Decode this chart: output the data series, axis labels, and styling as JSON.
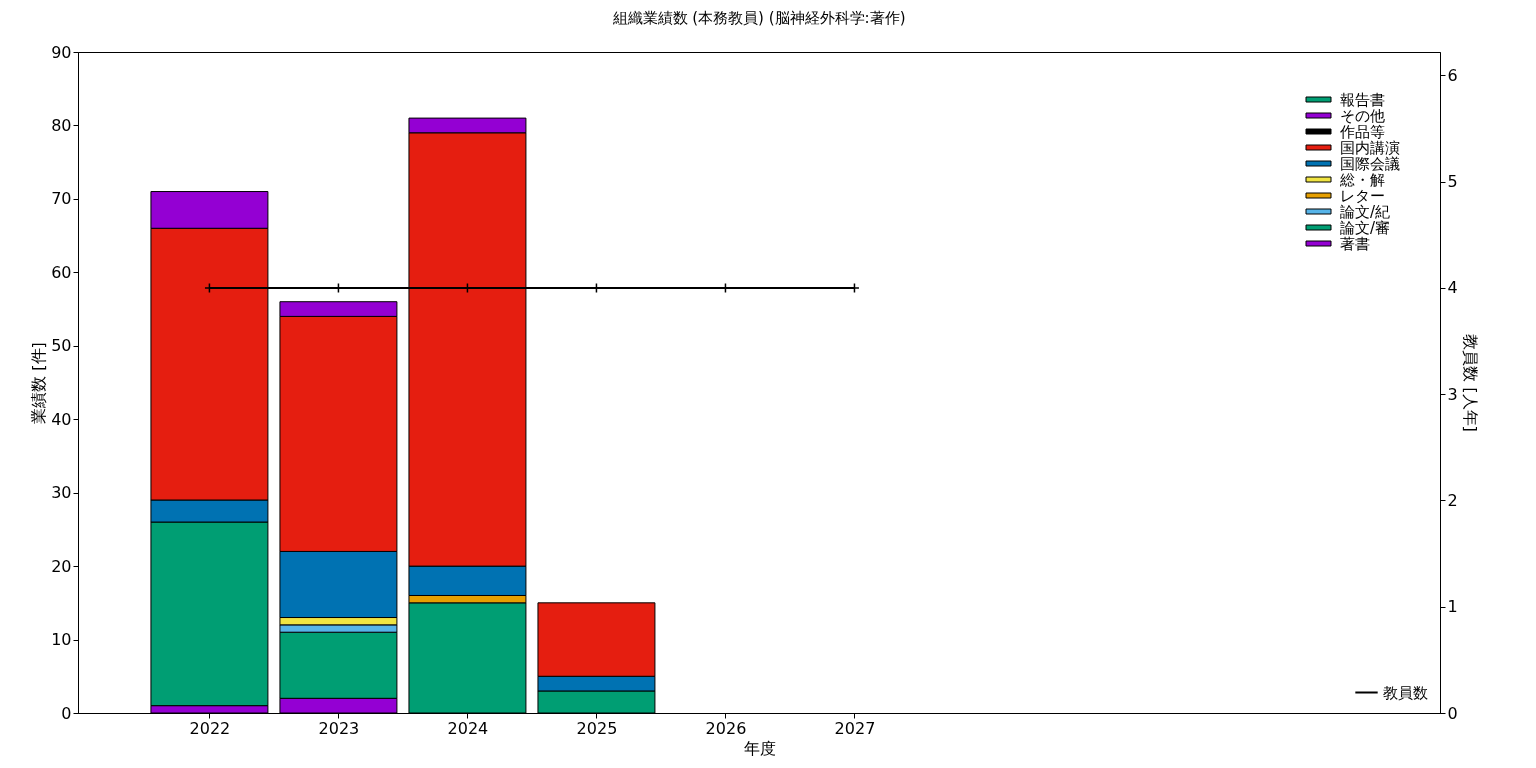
{
  "chart_data": {
    "type": "bar",
    "title": "組織業績数 (本務教員) (脳神経外科学:著作)",
    "xlabel": "年度",
    "ylabel": "業績数 [件]",
    "y2label": "教員数 [人年]",
    "stacked": true,
    "x": [
      2022,
      2023,
      2024,
      2025,
      2026,
      2027
    ],
    "xlim": [
      2021.02,
      2031.5
    ],
    "xticks": [
      2022,
      2023,
      2024,
      2025,
      2026,
      2027
    ],
    "ylim": [
      0,
      90
    ],
    "yticks": [
      0,
      10,
      20,
      30,
      40,
      50,
      60,
      70,
      80,
      90
    ],
    "y2lim": [
      0,
      6.22
    ],
    "y2ticks": [
      0,
      1,
      2,
      3,
      4,
      5,
      6
    ],
    "grid": false,
    "legend": "right",
    "marker": "cross",
    "line_style": "solid",
    "series": [
      {
        "name": "著書",
        "color": "#9400d3",
        "values": [
          1,
          2,
          null,
          null,
          null,
          null
        ]
      },
      {
        "name": "論文/審",
        "color": "#009e73",
        "values": [
          25,
          9,
          15,
          3,
          null,
          null
        ]
      },
      {
        "name": "論文/紀",
        "color": "#56b4e9",
        "values": [
          null,
          1,
          null,
          null,
          null,
          null
        ]
      },
      {
        "name": "レター",
        "color": "#e69f00",
        "values": [
          null,
          null,
          1,
          null,
          null,
          null
        ]
      },
      {
        "name": "総・解",
        "color": "#f0e442",
        "values": [
          null,
          1,
          null,
          null,
          null,
          null
        ]
      },
      {
        "name": "国際会議",
        "color": "#0072b2",
        "values": [
          3,
          9,
          4,
          2,
          null,
          null
        ]
      },
      {
        "name": "国内講演",
        "color": "#e51e10",
        "values": [
          37,
          32,
          59,
          10,
          null,
          null
        ]
      },
      {
        "name": "作品等",
        "color": "#000000",
        "values": [
          null,
          null,
          null,
          null,
          null,
          null
        ]
      },
      {
        "name": "その他",
        "color": "#9400d3",
        "values": [
          5,
          2,
          2,
          null,
          null,
          null
        ]
      },
      {
        "name": "報告書",
        "color": "#009e73",
        "values": [
          null,
          null,
          null,
          null,
          null,
          null
        ]
      },
      {
        "name": "教員数",
        "type": "line",
        "axis": "y2",
        "color": "#000000",
        "values": [
          4,
          4,
          4,
          4,
          4,
          4
        ]
      }
    ]
  }
}
